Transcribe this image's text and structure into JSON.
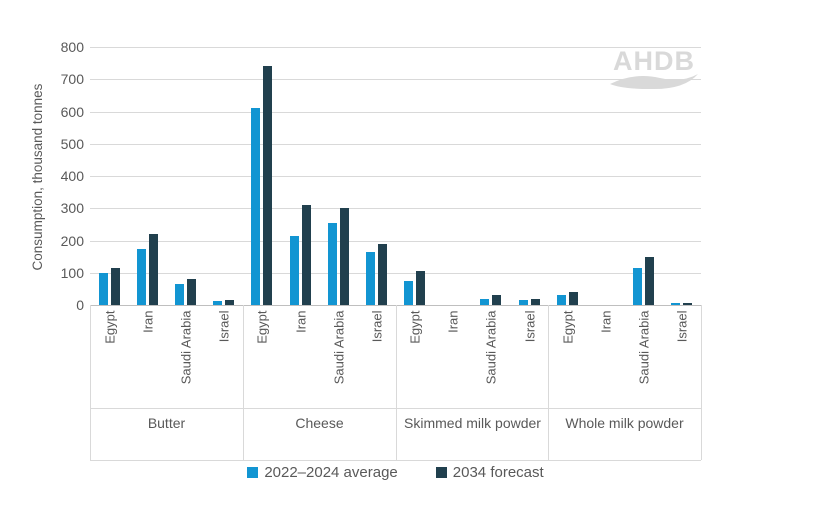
{
  "watermark": {
    "text": "AHDB"
  },
  "chart_data": {
    "type": "bar",
    "title": "",
    "ylabel": "Consumption, thousand tonnes",
    "ylim": [
      0,
      800
    ],
    "y_tick_step": 100,
    "grid": true,
    "legend_position": "bottom",
    "groups": [
      "Butter",
      "Cheese",
      "Skimmed milk\npowder",
      "Whole milk powder"
    ],
    "categories": [
      "Egypt",
      "Iran",
      "Saudi Arabia",
      "Israel"
    ],
    "series": [
      {
        "name": "2022–2024 average",
        "color": "#1295d2",
        "values": [
          [
            100,
            175,
            65,
            13
          ],
          [
            610,
            215,
            255,
            165
          ],
          [
            75,
            0,
            20,
            15
          ],
          [
            30,
            0,
            115,
            5
          ]
        ]
      },
      {
        "name": "2034 forecast",
        "color": "#21404e",
        "values": [
          [
            115,
            220,
            80,
            17
          ],
          [
            740,
            310,
            300,
            190
          ],
          [
            105,
            0,
            30,
            20
          ],
          [
            40,
            0,
            150,
            6
          ]
        ]
      }
    ]
  }
}
